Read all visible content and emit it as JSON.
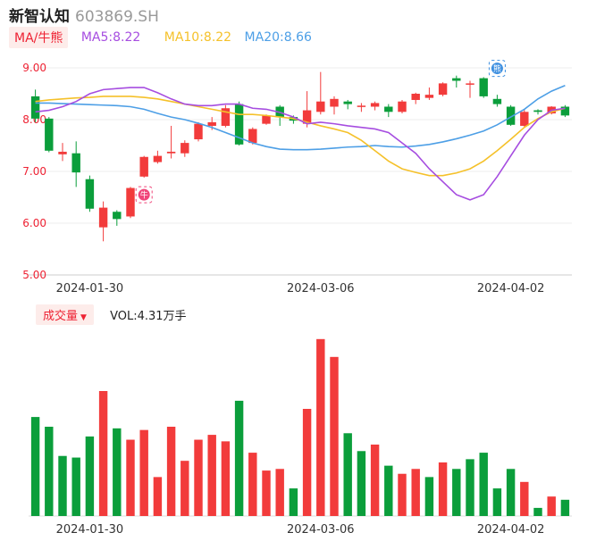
{
  "header": {
    "name": "新智认知",
    "code": "603869.SH"
  },
  "ma": {
    "selector_label": "MA/牛熊",
    "ma5_label": "MA5:8.22",
    "ma10_label": "MA10:8.22",
    "ma20_label": "MA20:8.66",
    "colors": {
      "ma5": "#a64de0",
      "ma10": "#f5c12a",
      "ma20": "#4d9fe6",
      "up": "#f23b3b",
      "down": "#0b9e3b"
    }
  },
  "volume": {
    "selector_label": "成交量",
    "vol_label": "VOL:4.31万手"
  },
  "badges": {
    "bull": "牛",
    "bear": "熊"
  },
  "chart_data": [
    {
      "type": "candlestick",
      "title": "新智认知 603869.SH",
      "ylim": [
        5.0,
        9.0
      ],
      "y_ticks": [
        "9.00",
        "8.00",
        "7.00",
        "6.00",
        "5.00"
      ],
      "x_tick_labels": [
        "2024-01-30",
        "2024-03-06",
        "2024-04-02"
      ],
      "candles": [
        {
          "o": 8.45,
          "c": 8.02,
          "h": 8.58,
          "l": 7.95
        },
        {
          "o": 8.02,
          "c": 7.4,
          "h": 8.05,
          "l": 7.37
        },
        {
          "o": 7.33,
          "c": 7.38,
          "h": 7.55,
          "l": 7.2
        },
        {
          "o": 7.35,
          "c": 6.98,
          "h": 7.58,
          "l": 6.7
        },
        {
          "o": 6.85,
          "c": 6.28,
          "h": 6.92,
          "l": 6.22
        },
        {
          "o": 5.92,
          "c": 6.3,
          "h": 6.42,
          "l": 5.65
        },
        {
          "o": 6.22,
          "c": 6.08,
          "h": 6.25,
          "l": 5.95
        },
        {
          "o": 6.13,
          "c": 6.68,
          "h": 6.7,
          "l": 6.1
        },
        {
          "o": 6.9,
          "c": 7.28,
          "h": 7.3,
          "l": 6.88
        },
        {
          "o": 7.18,
          "c": 7.3,
          "h": 7.4,
          "l": 7.15
        },
        {
          "o": 7.35,
          "c": 7.38,
          "h": 7.88,
          "l": 7.25
        },
        {
          "o": 7.35,
          "c": 7.55,
          "h": 7.6,
          "l": 7.28
        },
        {
          "o": 7.62,
          "c": 7.92,
          "h": 7.95,
          "l": 7.58
        },
        {
          "o": 7.88,
          "c": 7.95,
          "h": 8.05,
          "l": 7.8
        },
        {
          "o": 7.88,
          "c": 8.22,
          "h": 8.28,
          "l": 7.85
        },
        {
          "o": 8.3,
          "c": 7.52,
          "h": 8.35,
          "l": 7.5
        },
        {
          "o": 7.55,
          "c": 7.82,
          "h": 7.85,
          "l": 7.52
        },
        {
          "o": 7.92,
          "c": 8.08,
          "h": 8.1,
          "l": 7.9
        },
        {
          "o": 8.25,
          "c": 8.05,
          "h": 8.28,
          "l": 7.88
        },
        {
          "o": 8.05,
          "c": 7.98,
          "h": 8.08,
          "l": 7.92
        },
        {
          "o": 7.92,
          "c": 8.18,
          "h": 8.55,
          "l": 7.85
        },
        {
          "o": 8.15,
          "c": 8.35,
          "h": 8.92,
          "l": 8.1
        },
        {
          "o": 8.25,
          "c": 8.4,
          "h": 8.45,
          "l": 8.1
        },
        {
          "o": 8.35,
          "c": 8.3,
          "h": 8.38,
          "l": 8.2
        },
        {
          "o": 8.25,
          "c": 8.27,
          "h": 8.32,
          "l": 8.15
        },
        {
          "o": 8.25,
          "c": 8.32,
          "h": 8.35,
          "l": 8.18
        },
        {
          "o": 8.25,
          "c": 8.15,
          "h": 8.3,
          "l": 8.05
        },
        {
          "o": 8.15,
          "c": 8.35,
          "h": 8.38,
          "l": 8.12
        },
        {
          "o": 8.38,
          "c": 8.5,
          "h": 8.52,
          "l": 8.3
        },
        {
          "o": 8.42,
          "c": 8.48,
          "h": 8.62,
          "l": 8.38
        },
        {
          "o": 8.48,
          "c": 8.7,
          "h": 8.72,
          "l": 8.45
        },
        {
          "o": 8.8,
          "c": 8.75,
          "h": 8.85,
          "l": 8.62
        },
        {
          "o": 8.68,
          "c": 8.7,
          "h": 8.75,
          "l": 8.42
        },
        {
          "o": 8.8,
          "c": 8.45,
          "h": 8.82,
          "l": 8.42
        },
        {
          "o": 8.4,
          "c": 8.3,
          "h": 8.48,
          "l": 8.25
        },
        {
          "o": 8.25,
          "c": 7.9,
          "h": 8.28,
          "l": 7.88
        },
        {
          "o": 7.88,
          "c": 8.15,
          "h": 8.2,
          "l": 7.85
        },
        {
          "o": 8.18,
          "c": 8.15,
          "h": 8.2,
          "l": 8.1
        },
        {
          "o": 8.12,
          "c": 8.25,
          "h": 8.26,
          "l": 8.1
        },
        {
          "o": 8.25,
          "c": 8.08,
          "h": 8.28,
          "l": 8.05
        }
      ],
      "ma5": [
        8.15,
        8.18,
        8.25,
        8.35,
        8.5,
        8.58,
        8.6,
        8.62,
        8.62,
        8.52,
        8.4,
        8.3,
        8.27,
        8.27,
        8.3,
        8.3,
        8.22,
        8.2,
        8.14,
        8.05,
        7.92,
        7.95,
        7.92,
        7.88,
        7.85,
        7.82,
        7.75,
        7.55,
        7.35,
        7.05,
        6.8,
        6.55,
        6.45,
        6.55,
        6.9,
        7.3,
        7.7,
        8.0,
        8.18,
        8.22
      ],
      "ma10": [
        8.35,
        8.38,
        8.4,
        8.42,
        8.43,
        8.45,
        8.45,
        8.45,
        8.43,
        8.4,
        8.35,
        8.3,
        8.25,
        8.2,
        8.15,
        8.1,
        8.1,
        8.08,
        8.05,
        8.02,
        7.95,
        7.88,
        7.82,
        7.75,
        7.6,
        7.4,
        7.2,
        7.05,
        6.98,
        6.92,
        6.92,
        6.97,
        7.05,
        7.2,
        7.4,
        7.62,
        7.85,
        8.02,
        8.15,
        8.22
      ],
      "ma20": [
        8.32,
        8.32,
        8.31,
        8.3,
        8.29,
        8.28,
        8.27,
        8.25,
        8.2,
        8.12,
        8.05,
        8.0,
        7.93,
        7.85,
        7.75,
        7.65,
        7.55,
        7.48,
        7.43,
        7.42,
        7.42,
        7.43,
        7.45,
        7.47,
        7.48,
        7.5,
        7.48,
        7.47,
        7.49,
        7.52,
        7.57,
        7.63,
        7.7,
        7.78,
        7.9,
        8.05,
        8.2,
        8.4,
        8.55,
        8.66
      ]
    },
    {
      "type": "bar",
      "title": "成交量",
      "ylim": [
        0,
        11
      ],
      "x_tick_labels": [
        "2024-01-30",
        "2024-03-06",
        "2024-04-02"
      ],
      "values": [
        6.1,
        5.5,
        3.7,
        3.6,
        4.9,
        7.7,
        5.4,
        4.7,
        5.3,
        2.4,
        5.5,
        3.4,
        4.7,
        5.0,
        4.6,
        7.1,
        3.9,
        2.8,
        2.9,
        1.7,
        6.6,
        10.9,
        9.8,
        5.1,
        4.0,
        4.4,
        3.1,
        2.6,
        2.9,
        2.4,
        3.3,
        2.9,
        3.5,
        3.9,
        1.7,
        2.9,
        2.1,
        0.5,
        1.2,
        1.0
      ],
      "up": [
        false,
        false,
        false,
        false,
        false,
        true,
        false,
        true,
        true,
        true,
        true,
        true,
        true,
        true,
        true,
        false,
        true,
        true,
        true,
        false,
        true,
        true,
        true,
        false,
        false,
        true,
        false,
        true,
        true,
        false,
        true,
        false,
        false,
        false,
        false,
        false,
        true,
        false,
        true,
        false
      ]
    }
  ]
}
